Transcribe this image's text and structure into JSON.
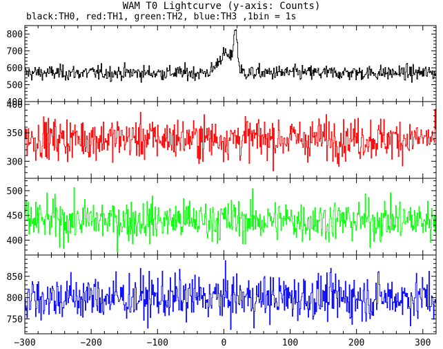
{
  "title": "WAM T0 Lightcurve (y-axis: Counts)",
  "subtitle": "black:TH0, red:TH1, green:TH2, blue:TH3 ,1bin = 1s",
  "chart_data": {
    "type": "line",
    "x_range": [
      -300,
      320
    ],
    "x_ticks": [
      -300,
      -200,
      -100,
      0,
      100,
      200,
      300
    ],
    "x_tick_labels": [
      "−300",
      "−200",
      "−100",
      "0",
      "100",
      "200",
      "300"
    ],
    "grid": false,
    "panels": [
      {
        "series_name": "TH0",
        "color": "#000000",
        "ylim": [
          400,
          850
        ],
        "y_ticks": [
          400,
          500,
          600,
          700,
          800
        ],
        "baseline": 570,
        "noise": 22,
        "burst": [
          {
            "center": 1,
            "width": 10,
            "amplitude": 110
          },
          {
            "center": 17,
            "width": 3,
            "amplitude": 230
          }
        ]
      },
      {
        "series_name": "TH1",
        "color": "#ff0000",
        "ylim": [
          270,
          405
        ],
        "y_ticks": [
          300,
          350,
          400
        ],
        "baseline": 340,
        "noise": 18,
        "burst": []
      },
      {
        "series_name": "TH2",
        "color": "#00ff00",
        "ylim": [
          370,
          525
        ],
        "y_ticks": [
          400,
          450,
          500
        ],
        "baseline": 440,
        "noise": 21,
        "burst": []
      },
      {
        "series_name": "TH3",
        "color": "#0000ff",
        "ylim": [
          715,
          900
        ],
        "y_ticks": [
          750,
          800,
          850
        ],
        "baseline": 800,
        "noise": 27,
        "burst": []
      }
    ]
  }
}
